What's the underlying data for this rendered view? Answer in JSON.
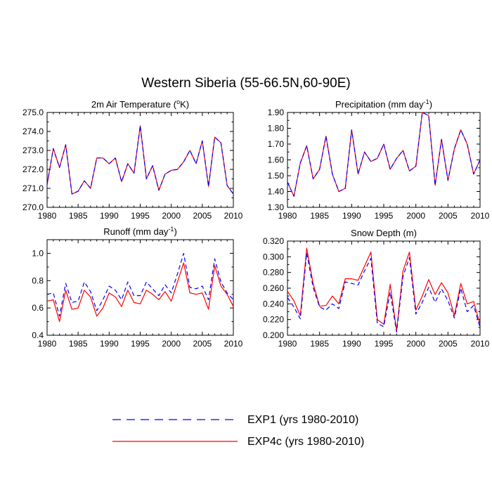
{
  "title": "Western Siberia (55-66.5N,60-90E)",
  "legend": [
    {
      "label": "EXP1 (yrs 1980-2010)",
      "color": "#0000ff",
      "style": "dashed"
    },
    {
      "label": "EXP4c (yrs 1980-2010)",
      "color": "#ff0000",
      "style": "solid"
    }
  ],
  "chart_data": [
    {
      "type": "line",
      "title": "2m Air Temperature (",
      "title_sup": "o",
      "title_suffix": "K)",
      "x": [
        1980,
        1981,
        1982,
        1983,
        1984,
        1985,
        1986,
        1987,
        1988,
        1989,
        1990,
        1991,
        1992,
        1993,
        1994,
        1995,
        1996,
        1997,
        1998,
        1999,
        2000,
        2001,
        2002,
        2003,
        2004,
        2005,
        2006,
        2007,
        2008,
        2009,
        2010
      ],
      "xlim": [
        1980,
        2010
      ],
      "xticks": [
        "1980",
        "1985",
        "1990",
        "1995",
        "2000",
        "2005",
        "2010"
      ],
      "ylim": [
        270.0,
        275.0
      ],
      "yticks": [
        "270.0",
        "271.0",
        "272.0",
        "273.0",
        "274.0",
        "275.0"
      ],
      "series": [
        {
          "name": "EXP1",
          "values": [
            271.2,
            273.1,
            272.1,
            273.3,
            270.7,
            270.85,
            271.4,
            271.0,
            272.6,
            272.6,
            272.3,
            272.6,
            271.35,
            272.3,
            271.8,
            274.3,
            271.5,
            272.2,
            270.9,
            271.75,
            271.95,
            272.0,
            272.4,
            273.0,
            272.3,
            273.5,
            271.1,
            273.7,
            273.4,
            271.15,
            270.7
          ]
        },
        {
          "name": "EXP4c",
          "values": [
            271.2,
            273.1,
            272.1,
            273.3,
            270.7,
            270.85,
            271.4,
            271.0,
            272.6,
            272.6,
            272.3,
            272.6,
            271.35,
            272.3,
            271.8,
            274.3,
            271.5,
            272.2,
            270.9,
            271.75,
            271.95,
            272.0,
            272.4,
            273.0,
            272.3,
            273.5,
            271.1,
            273.7,
            273.4,
            271.15,
            270.7
          ]
        }
      ]
    },
    {
      "type": "line",
      "title": "Precipitation (mm day",
      "title_sup": "-1",
      "title_suffix": ")",
      "x": [
        1980,
        1981,
        1982,
        1983,
        1984,
        1985,
        1986,
        1987,
        1988,
        1989,
        1990,
        1991,
        1992,
        1993,
        1994,
        1995,
        1996,
        1997,
        1998,
        1999,
        2000,
        2001,
        2002,
        2003,
        2004,
        2005,
        2006,
        2007,
        2008,
        2009,
        2010
      ],
      "xlim": [
        1980,
        2010
      ],
      "xticks": [
        "1980",
        "1985",
        "1990",
        "1995",
        "2000",
        "2005",
        "2010"
      ],
      "ylim": [
        1.3,
        1.9
      ],
      "yticks": [
        "1.30",
        "1.40",
        "1.50",
        "1.60",
        "1.70",
        "1.80",
        "1.90"
      ],
      "series": [
        {
          "name": "EXP1",
          "values": [
            1.46,
            1.37,
            1.58,
            1.69,
            1.48,
            1.54,
            1.75,
            1.51,
            1.4,
            1.42,
            1.79,
            1.51,
            1.65,
            1.59,
            1.61,
            1.7,
            1.54,
            1.61,
            1.66,
            1.53,
            1.56,
            1.9,
            1.88,
            1.44,
            1.73,
            1.47,
            1.67,
            1.79,
            1.7,
            1.51,
            1.6
          ]
        },
        {
          "name": "EXP4c",
          "values": [
            1.46,
            1.37,
            1.58,
            1.69,
            1.48,
            1.54,
            1.75,
            1.51,
            1.4,
            1.42,
            1.79,
            1.51,
            1.65,
            1.59,
            1.61,
            1.7,
            1.54,
            1.61,
            1.66,
            1.53,
            1.56,
            1.9,
            1.88,
            1.44,
            1.73,
            1.47,
            1.67,
            1.79,
            1.7,
            1.51,
            1.6
          ]
        }
      ]
    },
    {
      "type": "line",
      "title": "Runoff (mm day",
      "title_sup": "-1",
      "title_suffix": ")",
      "x": [
        1980,
        1981,
        1982,
        1983,
        1984,
        1985,
        1986,
        1987,
        1988,
        1989,
        1990,
        1991,
        1992,
        1993,
        1994,
        1995,
        1996,
        1997,
        1998,
        1999,
        2000,
        2001,
        2002,
        2003,
        2004,
        2005,
        2006,
        2007,
        2008,
        2009,
        2010
      ],
      "xlim": [
        1980,
        2010
      ],
      "xticks": [
        "1980",
        "1985",
        "1990",
        "1995",
        "2000",
        "2005",
        "2010"
      ],
      "ylim": [
        0.4,
        1.1
      ],
      "yticks": [
        "0.4",
        "0.6",
        "0.8",
        "1.0"
      ],
      "series": [
        {
          "name": "EXP1",
          "values": [
            0.7,
            0.71,
            0.54,
            0.78,
            0.64,
            0.65,
            0.79,
            0.72,
            0.58,
            0.66,
            0.76,
            0.73,
            0.66,
            0.79,
            0.69,
            0.69,
            0.79,
            0.74,
            0.69,
            0.77,
            0.71,
            0.85,
            1.0,
            0.75,
            0.74,
            0.76,
            0.66,
            0.96,
            0.79,
            0.71,
            0.66
          ]
        },
        {
          "name": "EXP4c",
          "values": [
            0.65,
            0.66,
            0.5,
            0.73,
            0.59,
            0.6,
            0.73,
            0.68,
            0.54,
            0.6,
            0.71,
            0.68,
            0.61,
            0.73,
            0.64,
            0.63,
            0.73,
            0.7,
            0.66,
            0.72,
            0.65,
            0.79,
            0.93,
            0.71,
            0.7,
            0.71,
            0.59,
            0.91,
            0.76,
            0.7,
            0.61
          ]
        }
      ]
    },
    {
      "type": "line",
      "title": "Snow Depth (m)",
      "title_sup": "",
      "title_suffix": "",
      "x": [
        1980,
        1981,
        1982,
        1983,
        1984,
        1985,
        1986,
        1987,
        1988,
        1989,
        1990,
        1991,
        1992,
        1993,
        1994,
        1995,
        1996,
        1997,
        1998,
        1999,
        2000,
        2001,
        2002,
        2003,
        2004,
        2005,
        2006,
        2007,
        2008,
        2009,
        2010
      ],
      "xlim": [
        1980,
        2010
      ],
      "xticks": [
        "1980",
        "1985",
        "1990",
        "1995",
        "2000",
        "2005",
        "2010"
      ],
      "ylim": [
        0.2,
        0.32
      ],
      "yticks": [
        "0.200",
        "0.220",
        "0.240",
        "0.260",
        "0.280",
        "0.300",
        "0.320"
      ],
      "series": [
        {
          "name": "EXP1",
          "values": [
            0.248,
            0.236,
            0.221,
            0.305,
            0.261,
            0.236,
            0.232,
            0.24,
            0.234,
            0.268,
            0.266,
            0.264,
            0.282,
            0.298,
            0.215,
            0.211,
            0.255,
            0.204,
            0.275,
            0.299,
            0.227,
            0.242,
            0.261,
            0.242,
            0.259,
            0.244,
            0.222,
            0.26,
            0.23,
            0.238,
            0.21
          ]
        },
        {
          "name": "EXP4c",
          "values": [
            0.256,
            0.244,
            0.225,
            0.311,
            0.266,
            0.237,
            0.238,
            0.25,
            0.24,
            0.272,
            0.272,
            0.27,
            0.288,
            0.306,
            0.22,
            0.214,
            0.265,
            0.206,
            0.282,
            0.306,
            0.232,
            0.25,
            0.271,
            0.252,
            0.267,
            0.254,
            0.225,
            0.266,
            0.24,
            0.243,
            0.214
          ]
        }
      ]
    }
  ]
}
